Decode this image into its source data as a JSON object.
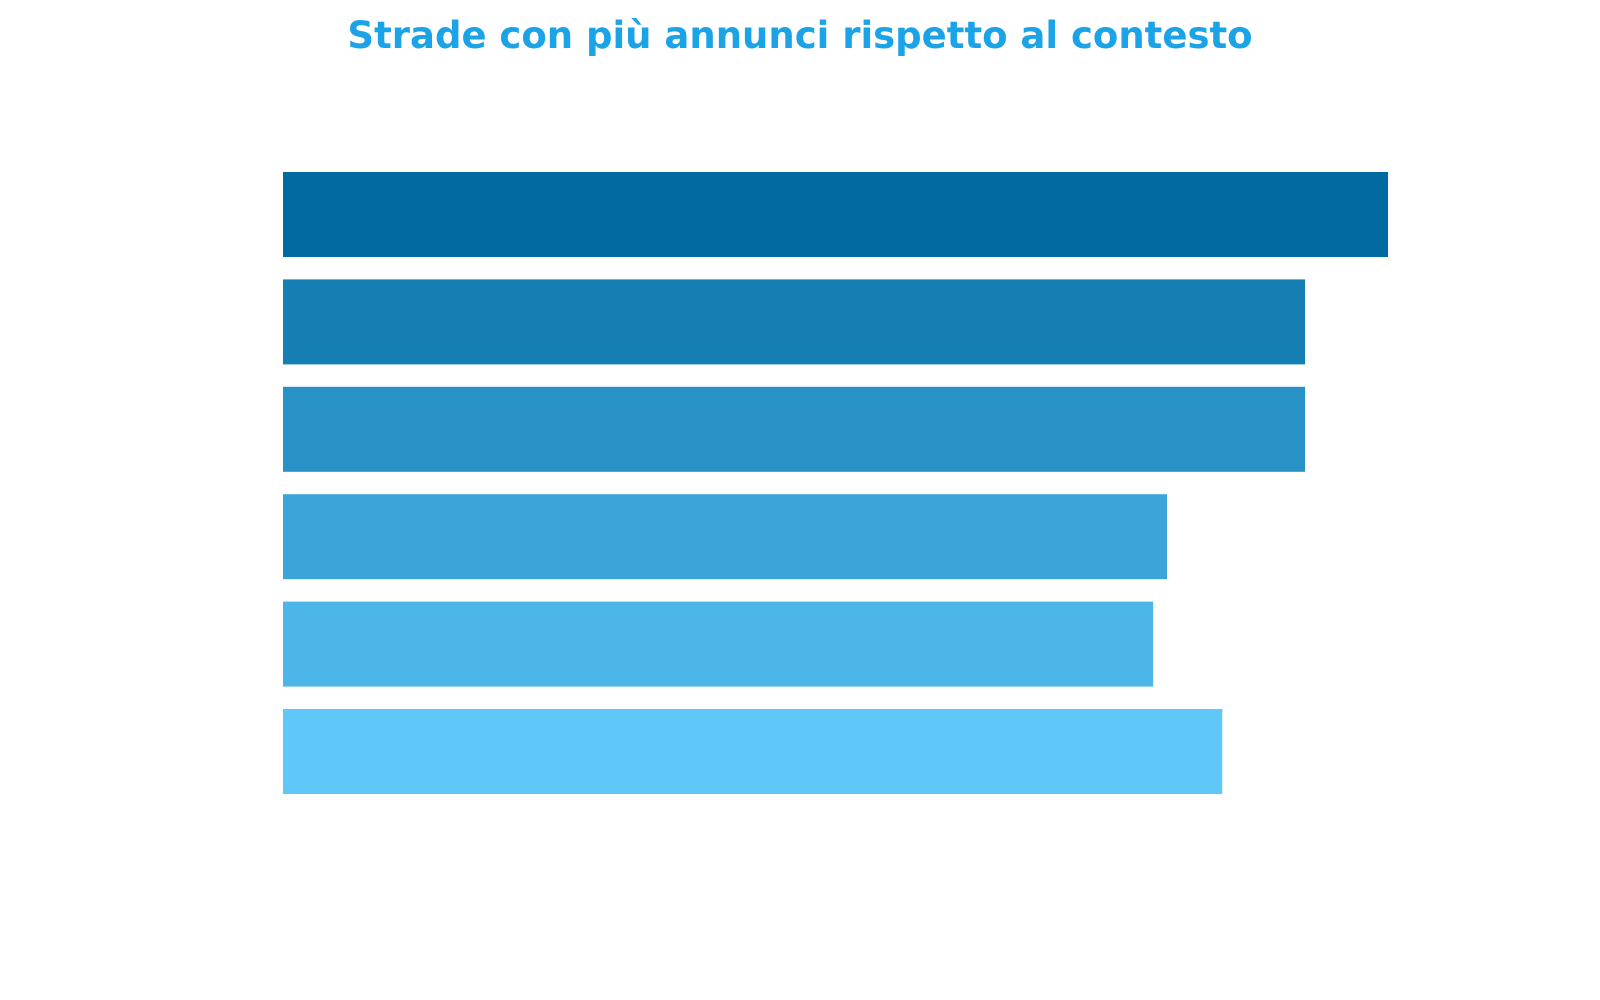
{
  "colors": {
    "title": "#1aa3e6",
    "bars": [
      "#006aa1",
      "#157eb2",
      "#2891c5",
      "#3ba4d8",
      "#4cb6e8",
      "#5fc8f8"
    ]
  },
  "chart_data": {
    "type": "bar",
    "orientation": "horizontal",
    "title": "Strade con più annunci rispetto al contesto",
    "xlabel": "",
    "ylabel": "",
    "categories": [
      "",
      "",
      "",
      "",
      "",
      ""
    ],
    "values": [
      80,
      74,
      74,
      64,
      63,
      68
    ],
    "xlim": [
      0,
      80
    ],
    "grid": false,
    "legend": "none"
  }
}
